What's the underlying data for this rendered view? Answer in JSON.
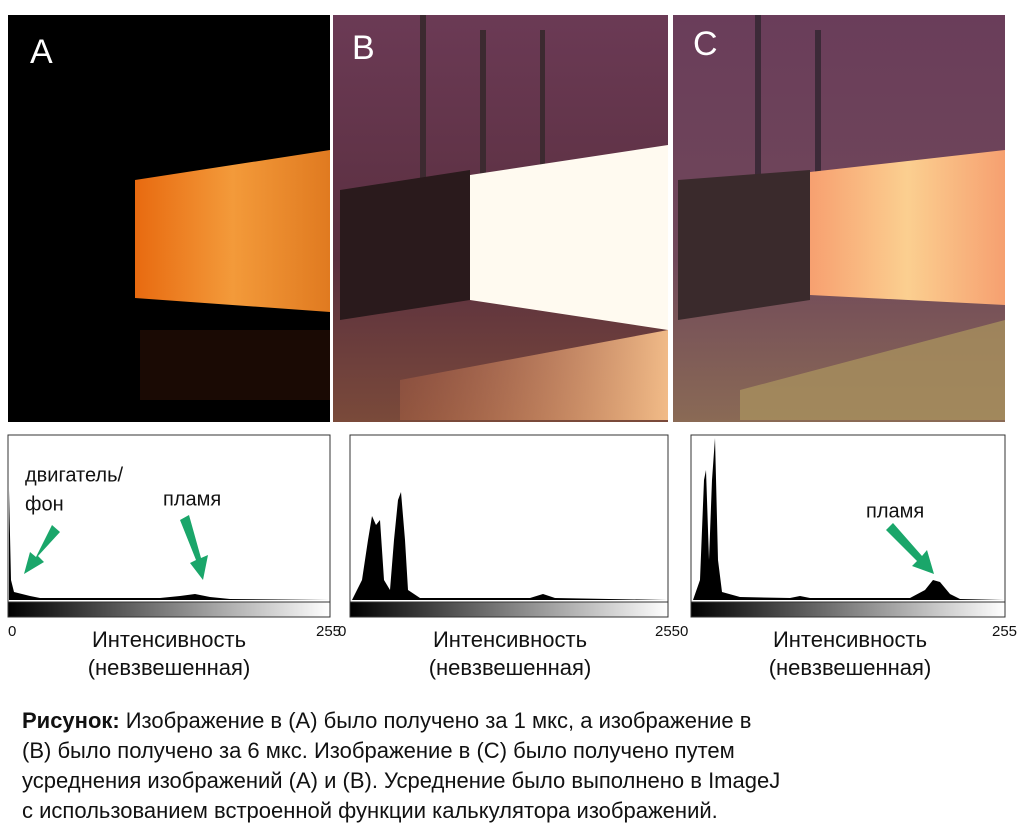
{
  "panels": [
    {
      "label": "A",
      "annotations": [
        "двигатель/",
        "фон",
        "пламя"
      ],
      "x_min": 0,
      "x_max": 255,
      "axis_label": [
        "Интенсивность",
        "(невзвешенная)"
      ]
    },
    {
      "label": "B",
      "x_min": 0,
      "x_max": 255,
      "axis_label": [
        "Интенсивность",
        "(невзвешенная)"
      ]
    },
    {
      "label": "C",
      "annotations": [
        "пламя"
      ],
      "x_min": 0,
      "x_max": 255,
      "axis_label": [
        "Интенсивность",
        "(невзвешенная)"
      ]
    }
  ],
  "caption": {
    "label": "Рисунок:",
    "lines": [
      "Изображение в (A) было получено за 1 мкс, а изображение в",
      "(B) было получено за 6 мкс. Изображение в (C) было получено путем",
      "усреднения изображений (A) и (B). Усреднение было выполнено в ImageJ",
      "с использованием встроенной функции калькулятора изображений."
    ]
  }
}
